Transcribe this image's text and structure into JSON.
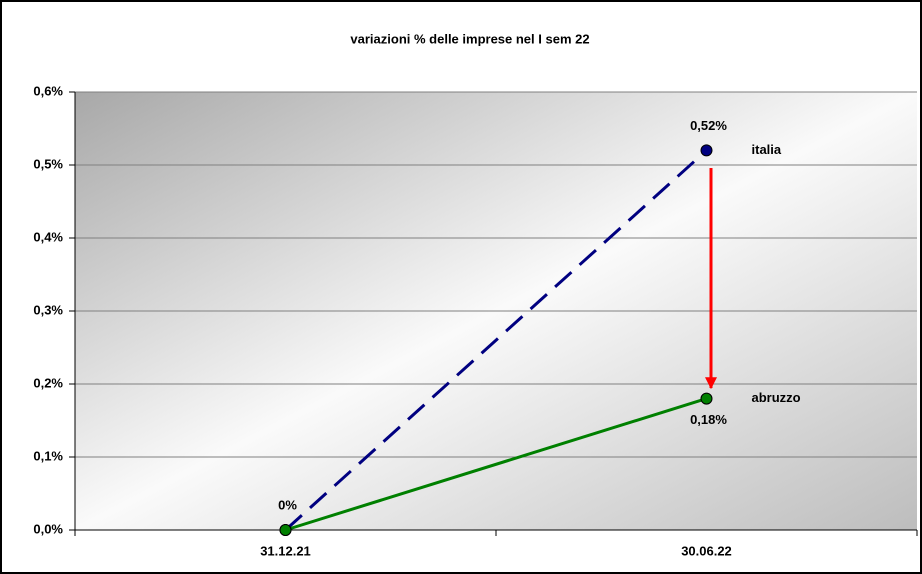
{
  "chart_data": {
    "type": "line",
    "title": "variazioni % delle imprese nel I sem 22",
    "categories": [
      "31.12.21",
      "30.06.22"
    ],
    "series": [
      {
        "name": "italia",
        "color": "#000080",
        "line_style": "dashed",
        "values": [
          0,
          0.52
        ],
        "value_labels": [
          "0%",
          "0,52%"
        ]
      },
      {
        "name": "abruzzo",
        "color": "#008000",
        "line_style": "solid",
        "values": [
          0,
          0.18
        ],
        "value_labels": [
          null,
          "0,18%"
        ]
      }
    ],
    "ylim": [
      0,
      0.6
    ],
    "yticks": [
      {
        "value": 0,
        "label": "0,0%"
      },
      {
        "value": 0.1,
        "label": "0,1%"
      },
      {
        "value": 0.2,
        "label": "0,2%"
      },
      {
        "value": 0.3,
        "label": "0,3%"
      },
      {
        "value": 0.4,
        "label": "0,4%"
      },
      {
        "value": 0.5,
        "label": "0,5%"
      },
      {
        "value": 0.6,
        "label": "0,6%"
      }
    ],
    "grid": true
  }
}
